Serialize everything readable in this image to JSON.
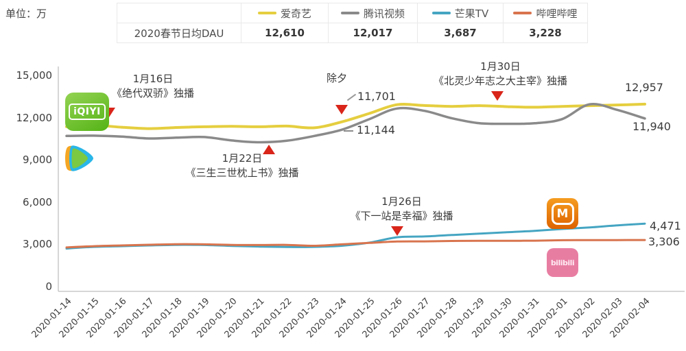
{
  "header": {
    "unit": "单位：万",
    "row_label": "2020春节日均DAU"
  },
  "legend": [
    {
      "label": "爱奇艺",
      "color": "#e5ce3f",
      "avg_dau": "12,610"
    },
    {
      "label": "腾讯视频",
      "color": "#8a8a8a",
      "avg_dau": "12,017"
    },
    {
      "label": "芒果TV",
      "color": "#45a5c2",
      "avg_dau": "3,687"
    },
    {
      "label": "哔哩哔哩",
      "color": "#d8744e",
      "avg_dau": "3,228"
    }
  ],
  "logos": {
    "iqiyi": "iQIYI",
    "mango": "M",
    "bilibili": "bilibili"
  },
  "chart_data": {
    "type": "line",
    "x": [
      "2020-01-14",
      "2020-01-15",
      "2020-01-16",
      "2020-01-17",
      "2020-01-18",
      "2020-01-19",
      "2020-01-20",
      "2020-01-21",
      "2020-01-22",
      "2020-01-23",
      "2020-01-24",
      "2020-01-25",
      "2020-01-26",
      "2020-01-27",
      "2020-01-28",
      "2020-01-29",
      "2020-01-30",
      "2020-01-31",
      "2020-02-01",
      "2020-02-02",
      "2020-02-03",
      "2020-02-04"
    ],
    "series": [
      {
        "name": "爱奇艺",
        "color": "#e5ce3f",
        "width": 4,
        "values": [
          11350,
          11450,
          11320,
          11220,
          11300,
          11350,
          11380,
          11350,
          11400,
          11280,
          11701,
          12300,
          12920,
          12860,
          12800,
          12850,
          12780,
          12740,
          12800,
          12850,
          12900,
          12957
        ]
      },
      {
        "name": "腾讯视频",
        "color": "#8a8a8a",
        "width": 3.5,
        "values": [
          10700,
          10720,
          10650,
          10520,
          10580,
          10620,
          10380,
          10250,
          10360,
          10700,
          11144,
          11900,
          12650,
          12480,
          11950,
          11600,
          11560,
          11600,
          11900,
          12950,
          12550,
          11940
        ]
      },
      {
        "name": "芒果TV",
        "color": "#45a5c2",
        "width": 3,
        "values": [
          2700,
          2820,
          2870,
          2920,
          2960,
          2950,
          2890,
          2840,
          2810,
          2820,
          2900,
          3120,
          3500,
          3560,
          3660,
          3760,
          3860,
          3960,
          4090,
          4200,
          4350,
          4471
        ]
      },
      {
        "name": "哔哩哔哩",
        "color": "#d8744e",
        "width": 3,
        "values": [
          2780,
          2870,
          2920,
          2970,
          3010,
          3000,
          2960,
          2950,
          2960,
          2900,
          3000,
          3100,
          3200,
          3210,
          3240,
          3250,
          3250,
          3260,
          3290,
          3300,
          3300,
          3306
        ]
      }
    ],
    "ylim": [
      0,
      15000
    ],
    "yticks": [
      0,
      3000,
      6000,
      9000,
      12000,
      15000
    ],
    "ytick_labels": [
      "0",
      "3,000",
      "6,000",
      "9,000",
      "12,000",
      "15,000"
    ],
    "unit": "万",
    "grid": false,
    "legend_position": "top",
    "annotations": {
      "jan16": {
        "date": "1月16日",
        "title": "《绝代双骄》独播",
        "marker": "down",
        "target_x": "2020-01-16",
        "target_series": "爱奇艺"
      },
      "jan22": {
        "date": "1月22日",
        "title": "《三生三世枕上书》独播",
        "marker": "up",
        "target_x": "2020-01-22",
        "target_series": "腾讯视频"
      },
      "chuxi": {
        "label": "除夕",
        "iqiyi_value": "11,701",
        "tencent_value": "11,144",
        "marker": "down",
        "target_x": "2020-01-24"
      },
      "jan30": {
        "date": "1月30日",
        "title": "《北灵少年志之大主宰》独播",
        "marker": "down",
        "target_x": "2020-01-30",
        "target_series": "腾讯视频"
      },
      "jan26": {
        "date": "1月26日",
        "title": "《下一站是幸福》独播",
        "marker": "down",
        "target_x": "2020-01-26",
        "target_series": "芒果TV"
      }
    },
    "end_labels": {
      "iqiyi": "12,957",
      "tencent": "11,940",
      "mango": "4,471",
      "bilibili": "3,306"
    }
  }
}
